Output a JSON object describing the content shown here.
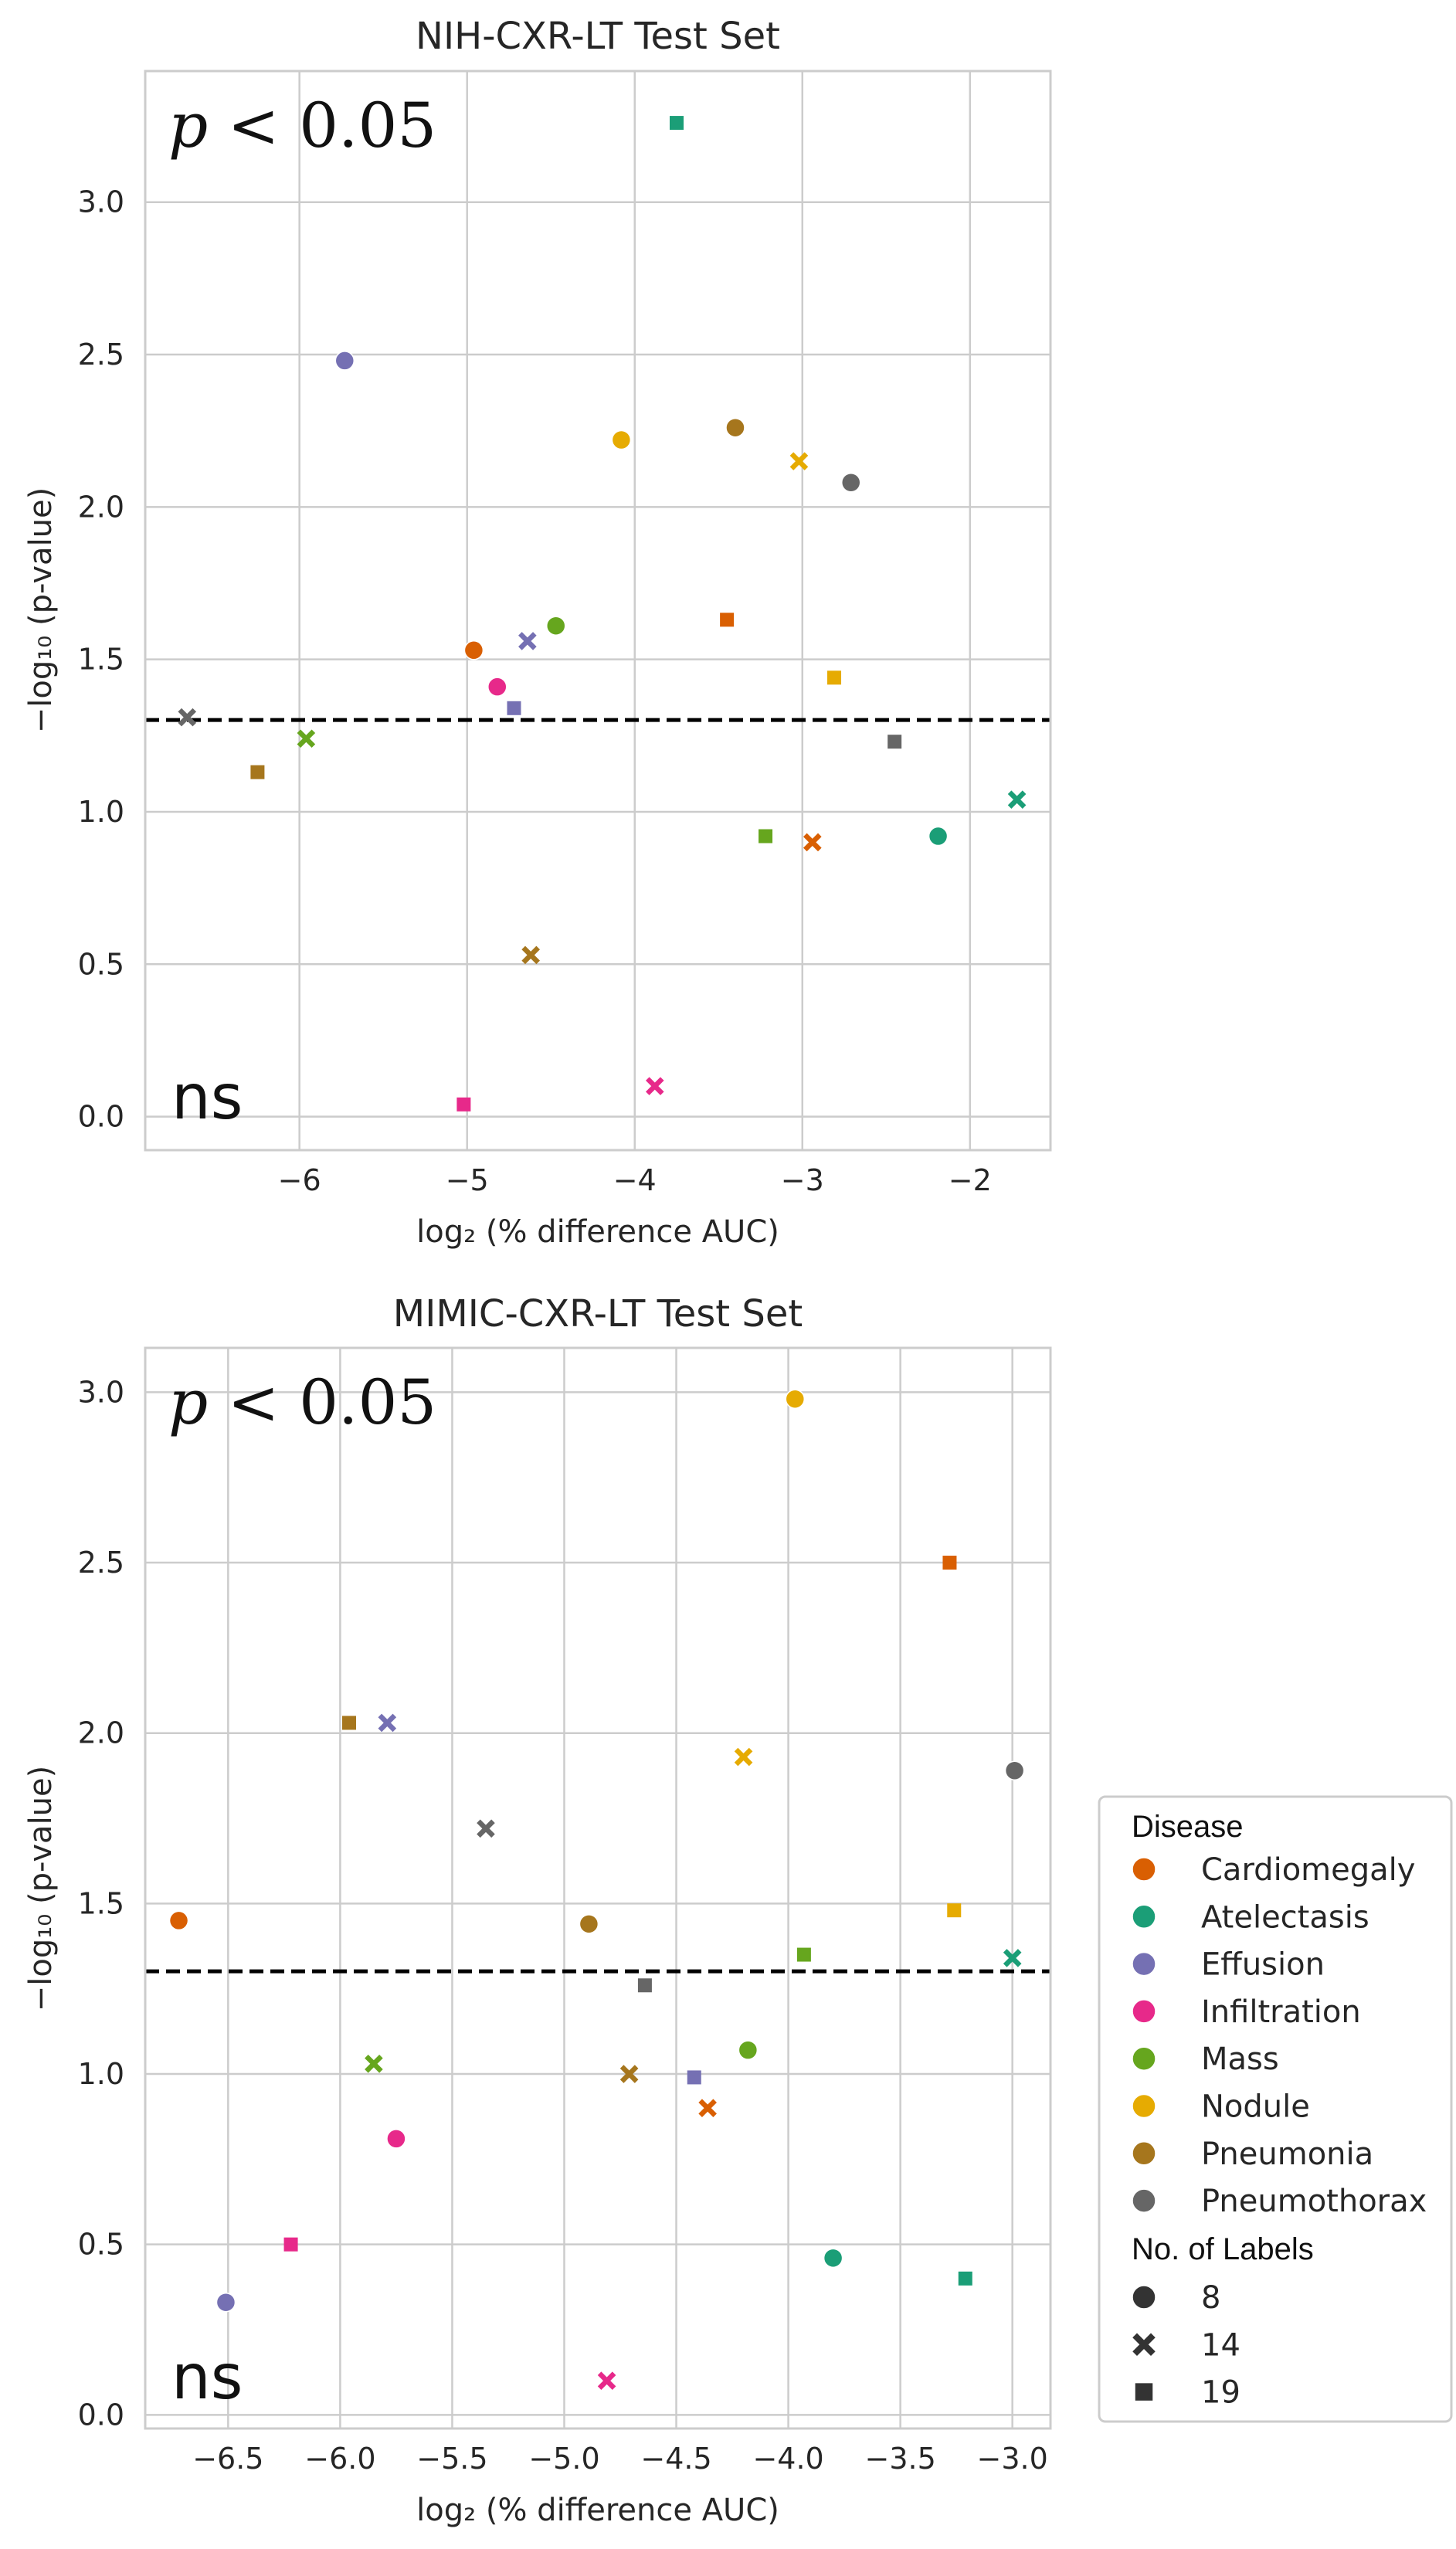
{
  "colors": {
    "Cardiomegaly": "#d95f02",
    "Atelectasis": "#1b9e77",
    "Effusion": "#7570b3",
    "Infiltration": "#e7298a",
    "Mass": "#66a61e",
    "Nodule": "#e6ab02",
    "Pneumonia": "#a6761d",
    "Pneumothorax": "#666666"
  },
  "legend": {
    "disease_title": "Disease",
    "diseases": [
      "Cardiomegaly",
      "Atelectasis",
      "Effusion",
      "Infiltration",
      "Mass",
      "Nodule",
      "Pneumonia",
      "Pneumothorax"
    ],
    "labels_title": "No. of Labels",
    "labels": [
      {
        "value": "8",
        "marker": "circle"
      },
      {
        "value": "14",
        "marker": "x"
      },
      {
        "value": "19",
        "marker": "square"
      }
    ]
  },
  "annotations": {
    "significant": "p < 0.05",
    "significant_var": "p",
    "significant_rest": " < 0.05",
    "not_significant": "ns"
  },
  "chart_data": [
    {
      "type": "scatter",
      "title": "NIH-CXR-LT Test Set",
      "xlabel": "log₂ (% difference AUC)",
      "ylabel": "−log₁₀ (p-value)",
      "xlim": [
        -6.92,
        -1.52
      ],
      "ylim": [
        -0.11,
        3.43
      ],
      "xticks": [
        -6,
        -5,
        -4,
        -3,
        -2
      ],
      "xtick_labels": [
        "−6",
        "−5",
        "−4",
        "−3",
        "−2"
      ],
      "yticks": [
        0.0,
        0.5,
        1.0,
        1.5,
        2.0,
        2.5,
        3.0
      ],
      "ytick_labels": [
        "0.0",
        "0.5",
        "1.0",
        "1.5",
        "2.0",
        "2.5",
        "3.0"
      ],
      "threshold": 1.301,
      "points": [
        {
          "disease": "Atelectasis",
          "labels": 19,
          "x": -3.75,
          "y": 3.26
        },
        {
          "disease": "Effusion",
          "labels": 8,
          "x": -5.73,
          "y": 2.48
        },
        {
          "disease": "Pneumonia",
          "labels": 8,
          "x": -3.4,
          "y": 2.26
        },
        {
          "disease": "Nodule",
          "labels": 8,
          "x": -4.08,
          "y": 2.22
        },
        {
          "disease": "Nodule",
          "labels": 14,
          "x": -3.02,
          "y": 2.15
        },
        {
          "disease": "Pneumothorax",
          "labels": 8,
          "x": -2.71,
          "y": 2.08
        },
        {
          "disease": "Cardiomegaly",
          "labels": 19,
          "x": -3.45,
          "y": 1.63
        },
        {
          "disease": "Mass",
          "labels": 8,
          "x": -4.47,
          "y": 1.61
        },
        {
          "disease": "Effusion",
          "labels": 14,
          "x": -4.64,
          "y": 1.56
        },
        {
          "disease": "Cardiomegaly",
          "labels": 8,
          "x": -4.96,
          "y": 1.53
        },
        {
          "disease": "Nodule",
          "labels": 19,
          "x": -2.81,
          "y": 1.44
        },
        {
          "disease": "Infiltration",
          "labels": 8,
          "x": -4.82,
          "y": 1.41
        },
        {
          "disease": "Effusion",
          "labels": 19,
          "x": -4.72,
          "y": 1.34
        },
        {
          "disease": "Pneumothorax",
          "labels": 14,
          "x": -6.67,
          "y": 1.31
        },
        {
          "disease": "Mass",
          "labels": 14,
          "x": -5.96,
          "y": 1.24
        },
        {
          "disease": "Pneumothorax",
          "labels": 19,
          "x": -2.45,
          "y": 1.23
        },
        {
          "disease": "Pneumonia",
          "labels": 19,
          "x": -6.25,
          "y": 1.13
        },
        {
          "disease": "Atelectasis",
          "labels": 14,
          "x": -1.72,
          "y": 1.04
        },
        {
          "disease": "Mass",
          "labels": 19,
          "x": -3.22,
          "y": 0.92
        },
        {
          "disease": "Atelectasis",
          "labels": 8,
          "x": -2.19,
          "y": 0.92
        },
        {
          "disease": "Cardiomegaly",
          "labels": 14,
          "x": -2.94,
          "y": 0.9
        },
        {
          "disease": "Pneumonia",
          "labels": 14,
          "x": -4.62,
          "y": 0.53
        },
        {
          "disease": "Infiltration",
          "labels": 14,
          "x": -3.88,
          "y": 0.1
        },
        {
          "disease": "Infiltration",
          "labels": 19,
          "x": -5.02,
          "y": 0.04
        }
      ]
    },
    {
      "type": "scatter",
      "title": "MIMIC-CXR-LT Test Set",
      "xlabel": "log₂ (% difference AUC)",
      "ylabel": "−log₁₀ (p-value)",
      "xlim": [
        -6.87,
        -2.83
      ],
      "ylim": [
        -0.04,
        3.13
      ],
      "xticks": [
        -6.5,
        -6.0,
        -5.5,
        -5.0,
        -4.5,
        -4.0,
        -3.5,
        -3.0
      ],
      "xtick_labels": [
        "−6.5",
        "−6.0",
        "−5.5",
        "−5.0",
        "−4.5",
        "−4.0",
        "−3.5",
        "−3.0"
      ],
      "yticks": [
        0.0,
        0.5,
        1.0,
        1.5,
        2.0,
        2.5,
        3.0
      ],
      "ytick_labels": [
        "0.0",
        "0.5",
        "1.0",
        "1.5",
        "2.0",
        "2.5",
        "3.0"
      ],
      "threshold": 1.301,
      "points": [
        {
          "disease": "Nodule",
          "labels": 8,
          "x": -3.97,
          "y": 2.98
        },
        {
          "disease": "Cardiomegaly",
          "labels": 19,
          "x": -3.28,
          "y": 2.5
        },
        {
          "disease": "Pneumonia",
          "labels": 19,
          "x": -5.96,
          "y": 2.03
        },
        {
          "disease": "Effusion",
          "labels": 14,
          "x": -5.79,
          "y": 2.03
        },
        {
          "disease": "Nodule",
          "labels": 14,
          "x": -4.2,
          "y": 1.93
        },
        {
          "disease": "Pneumothorax",
          "labels": 8,
          "x": -2.99,
          "y": 1.89
        },
        {
          "disease": "Pneumothorax",
          "labels": 14,
          "x": -5.35,
          "y": 1.72
        },
        {
          "disease": "Nodule",
          "labels": 19,
          "x": -3.26,
          "y": 1.48
        },
        {
          "disease": "Cardiomegaly",
          "labels": 8,
          "x": -6.72,
          "y": 1.45
        },
        {
          "disease": "Pneumonia",
          "labels": 8,
          "x": -4.89,
          "y": 1.44
        },
        {
          "disease": "Mass",
          "labels": 19,
          "x": -3.93,
          "y": 1.35
        },
        {
          "disease": "Atelectasis",
          "labels": 14,
          "x": -3.0,
          "y": 1.34
        },
        {
          "disease": "Pneumothorax",
          "labels": 19,
          "x": -4.64,
          "y": 1.26
        },
        {
          "disease": "Mass",
          "labels": 8,
          "x": -4.18,
          "y": 1.07
        },
        {
          "disease": "Mass",
          "labels": 14,
          "x": -5.85,
          "y": 1.03
        },
        {
          "disease": "Pneumonia",
          "labels": 14,
          "x": -4.71,
          "y": 1.0
        },
        {
          "disease": "Effusion",
          "labels": 19,
          "x": -4.42,
          "y": 0.99
        },
        {
          "disease": "Cardiomegaly",
          "labels": 14,
          "x": -4.36,
          "y": 0.9
        },
        {
          "disease": "Infiltration",
          "labels": 8,
          "x": -5.75,
          "y": 0.81
        },
        {
          "disease": "Infiltration",
          "labels": 19,
          "x": -6.22,
          "y": 0.5
        },
        {
          "disease": "Atelectasis",
          "labels": 8,
          "x": -3.8,
          "y": 0.46
        },
        {
          "disease": "Atelectasis",
          "labels": 19,
          "x": -3.21,
          "y": 0.4
        },
        {
          "disease": "Effusion",
          "labels": 8,
          "x": -6.51,
          "y": 0.33
        },
        {
          "disease": "Infiltration",
          "labels": 14,
          "x": -4.81,
          "y": 0.1
        }
      ]
    }
  ]
}
